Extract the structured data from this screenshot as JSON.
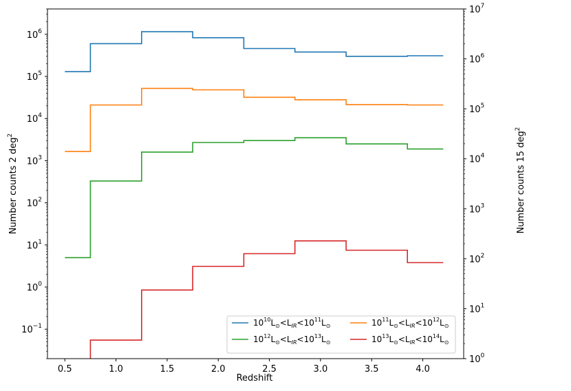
{
  "chart_data": {
    "type": "line",
    "drawstyle": "steps",
    "xlabel": "Redshift",
    "ylabel": "Number counts 2 deg",
    "ylabel_sup": "2",
    "ylabel_right": "Number counts 15 deg",
    "ylabel_right_sup": "2",
    "xlim": [
      0.33,
      4.4
    ],
    "ylim": [
      0.02,
      4000000
    ],
    "ylim_right": [
      1,
      10000000
    ],
    "yscale": "log",
    "grid": false,
    "legend_position": "lower-right",
    "x_ticks": [
      0.5,
      1.0,
      1.5,
      2.0,
      2.5,
      3.0,
      3.5,
      4.0
    ],
    "x_tick_labels": [
      "0.5",
      "1.0",
      "1.5",
      "2.0",
      "2.5",
      "3.0",
      "3.5",
      "4.0"
    ],
    "y_ticks": [
      {
        "value": 0.1,
        "base": "10",
        "exp": "−1"
      },
      {
        "value": 1,
        "base": "10",
        "exp": "0"
      },
      {
        "value": 10,
        "base": "10",
        "exp": "1"
      },
      {
        "value": 100,
        "base": "10",
        "exp": "2"
      },
      {
        "value": 1000,
        "base": "10",
        "exp": "3"
      },
      {
        "value": 10000,
        "base": "10",
        "exp": "4"
      },
      {
        "value": 100000,
        "base": "10",
        "exp": "5"
      },
      {
        "value": 1000000,
        "base": "10",
        "exp": "6"
      }
    ],
    "y_ticks_right": [
      {
        "value": 1,
        "base": "10",
        "exp": "0"
      },
      {
        "value": 10,
        "base": "10",
        "exp": "1"
      },
      {
        "value": 100,
        "base": "10",
        "exp": "2"
      },
      {
        "value": 1000,
        "base": "10",
        "exp": "3"
      },
      {
        "value": 10000,
        "base": "10",
        "exp": "4"
      },
      {
        "value": 100000,
        "base": "10",
        "exp": "5"
      },
      {
        "value": 1000000,
        "base": "10",
        "exp": "6"
      },
      {
        "value": 10000000,
        "base": "10",
        "exp": "7"
      }
    ],
    "bin_edges": [
      0.5,
      0.75,
      1.25,
      1.75,
      2.25,
      2.75,
      3.25,
      3.85,
      4.2
    ],
    "series": [
      {
        "legend": {
          "p1": "10",
          "s1": "10",
          "p2": "L",
          "sun1": "⊙",
          "p3": "<L",
          "sub": "IR",
          "p4": "<10",
          "s2": "11",
          "p5": "L",
          "sun2": "⊙"
        },
        "color": "#1f77b4",
        "values": [
          130000,
          600000,
          1150000,
          830000,
          460000,
          380000,
          300000,
          310000
        ]
      },
      {
        "legend": {
          "p1": "10",
          "s1": "11",
          "p2": "L",
          "sun1": "⊙",
          "p3": "<L",
          "sub": "IR",
          "p4": "<10",
          "s2": "12",
          "p5": "L",
          "sun2": "⊙"
        },
        "color": "#ff7f0e",
        "values": [
          1650,
          21000,
          52000,
          48000,
          32000,
          28000,
          21500,
          21000
        ]
      },
      {
        "legend": {
          "p1": "10",
          "s1": "12",
          "p2": "L",
          "sun1": "⊙",
          "p3": "<L",
          "sub": "IR",
          "p4": "<10",
          "s2": "13",
          "p5": "L",
          "sun2": "⊙"
        },
        "color": "#2ca02c",
        "values": [
          5,
          330,
          1600,
          2700,
          3000,
          3500,
          2500,
          1900
        ]
      },
      {
        "legend": {
          "p1": "10",
          "s1": "13",
          "p2": "L",
          "sun1": "⊙",
          "p3": "<L",
          "sub": "IR",
          "p4": "<10",
          "s2": "14",
          "p5": "L",
          "sun2": "⊙"
        },
        "color": "#d62728",
        "values": [
          0.012,
          0.055,
          0.85,
          3.1,
          6.2,
          12.5,
          7.5,
          3.8
        ]
      }
    ]
  }
}
